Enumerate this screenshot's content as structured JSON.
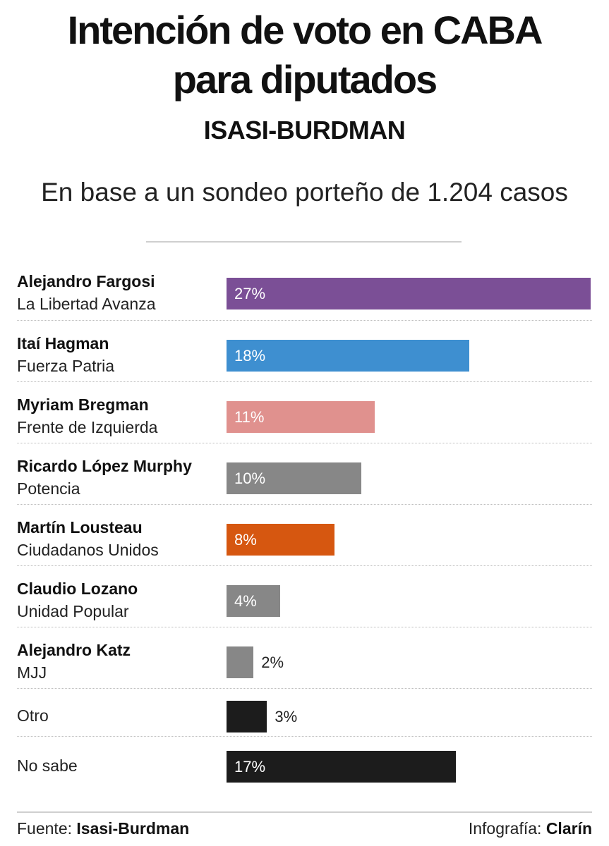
{
  "header": {
    "title_line1": "Intención de voto en CABA",
    "title_line2": "para diputados",
    "subtitle": "ISASI-BURDMAN",
    "description": "En base a un sondeo porteño de 1.204 casos"
  },
  "chart_data": {
    "type": "bar",
    "orientation": "horizontal",
    "unit": "%",
    "xlim": [
      0,
      27
    ],
    "categories": [
      "Alejandro Fargosi",
      "Itaí Hagman",
      "Myriam Bregman",
      "Ricardo López Murphy",
      "Martín Lousteau",
      "Claudio Lozano",
      "Alejandro Katz",
      "Otro",
      "No sabe"
    ],
    "parties": [
      "La Libertad Avanza",
      "Fuerza Patria",
      "Frente de Izquierda",
      "Potencia",
      "Ciudadanos Unidos",
      "Unidad Popular",
      "MJJ",
      "",
      ""
    ],
    "values": [
      27,
      18,
      11,
      10,
      8,
      4,
      2,
      3,
      17
    ],
    "value_labels": [
      "27%",
      "18%",
      "11%",
      "10%",
      "8%",
      "4%",
      "2%",
      "3%",
      "17%"
    ],
    "colors": [
      "#7b4f96",
      "#3e8fd0",
      "#e0918e",
      "#878787",
      "#d65710",
      "#878787",
      "#878787",
      "#1c1c1c",
      "#1c1c1c"
    ]
  },
  "footer": {
    "source_prefix": "Fuente: ",
    "source_name": "Isasi-Burdman",
    "credit_prefix": "Infografía: ",
    "credit_name": "Clarín"
  }
}
